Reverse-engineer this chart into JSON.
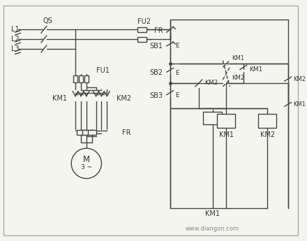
{
  "background_color": "#f5f5f0",
  "border_color": "#aaaaaa",
  "line_color": "#444444",
  "text_color": "#333333",
  "watermark": "www.diangon.com",
  "figsize": [
    4.4,
    3.45
  ],
  "dpi": 100,
  "labels": {
    "QS": "QS",
    "FU2": "FU2",
    "FU1": "FU1",
    "FR": "FR",
    "SB1": "SB1",
    "SB2": "SB2",
    "SB3": "SB3",
    "KM1_left": "KM1",
    "KM2_left": "KM2",
    "KM1_coil": "KM1",
    "KM2_coil": "KM2",
    "KM1_right1": "KM1",
    "KM2_right1": "KM2",
    "KM1_right2": "KM1",
    "KM2_right2": "KM2",
    "L1": "L1",
    "L2": "L2",
    "L3": "L3",
    "M": "M",
    "M3": "3 ~",
    "FR_right": "FR",
    "E1": "E",
    "E2": "E",
    "E3": "E"
  }
}
